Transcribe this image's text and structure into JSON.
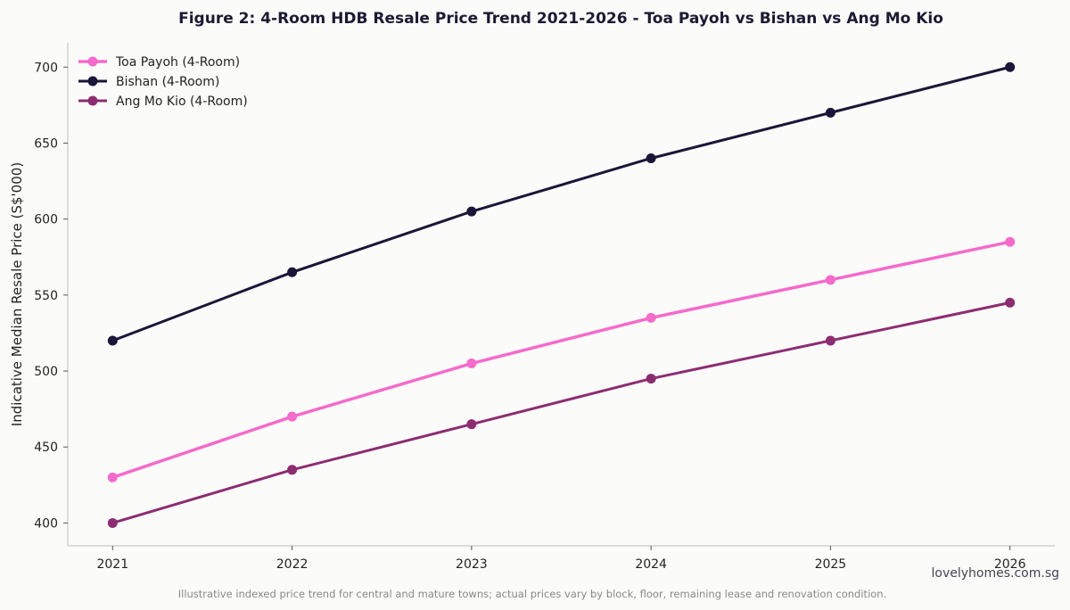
{
  "chart_data": {
    "type": "line",
    "title": "Figure 2: 4-Room HDB Resale Price Trend 2021-2026 - Toa Payoh vs Bishan vs Ang Mo Kio",
    "xlabel": "",
    "ylabel": "Indicative Median Resale Price (S$'000)",
    "x": [
      2021,
      2022,
      2023,
      2024,
      2025,
      2026
    ],
    "x_tick_labels": [
      "2021",
      "2022",
      "2023",
      "2024",
      "2025",
      "2026"
    ],
    "y_ticks": [
      400,
      450,
      500,
      550,
      600,
      650,
      700
    ],
    "y_tick_labels": [
      "400",
      "450",
      "500",
      "550",
      "600",
      "650",
      "700"
    ],
    "xlim": [
      2020.75,
      2026.25
    ],
    "ylim": [
      385,
      716
    ],
    "grid": false,
    "legend_position": "top-left",
    "series": [
      {
        "name": "Toa Payoh (4-Room)",
        "color": "#f46bcb",
        "values": [
          430,
          470,
          505,
          535,
          560,
          585
        ]
      },
      {
        "name": "Bishan (4-Room)",
        "color": "#1a1638",
        "values": [
          520,
          565,
          605,
          640,
          670,
          700
        ]
      },
      {
        "name": "Ang Mo Kio (4-Room)",
        "color": "#8c2d72",
        "values": [
          400,
          435,
          465,
          495,
          520,
          545
        ]
      }
    ]
  },
  "watermark": "lovelyhomes.com.sg",
  "footnote": "Illustrative indexed price trend for central and mature towns; actual prices vary by block, floor, remaining lease and renovation condition."
}
